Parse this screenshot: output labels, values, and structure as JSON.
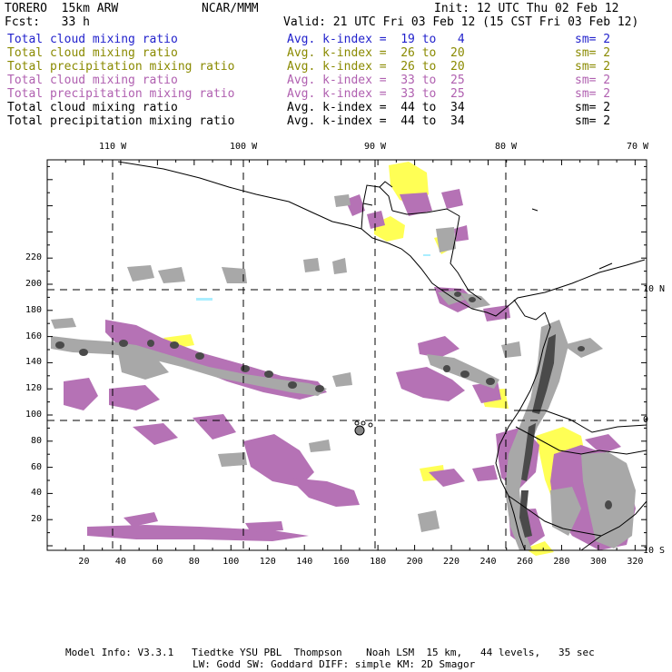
{
  "header": {
    "model": "TORERO  15km ARW",
    "center": "NCAR/MMM",
    "init": "Init: 12 UTC Thu 02 Feb 12",
    "fcst": "Fcst:   33 h",
    "valid": "Valid: 21 UTC Fri 03 Feb 12 (15 CST Fri 03 Feb 12)"
  },
  "legend": [
    {
      "field": "Total cloud mixing ratio",
      "kindex": "Avg. k-index =  19 to   4",
      "sm": "sm= 2",
      "color": "#2222cc"
    },
    {
      "field": "Total cloud mixing ratio",
      "kindex": "Avg. k-index =  26 to  20",
      "sm": "sm= 2",
      "color": "#8a8a00"
    },
    {
      "field": "Total precipitation mixing ratio",
      "kindex": "Avg. k-index =  26 to  20",
      "sm": "sm= 2",
      "color": "#8a8a00"
    },
    {
      "field": "Total cloud mixing ratio",
      "kindex": "Avg. k-index =  33 to  25",
      "sm": "sm= 2",
      "color": "#b060b0"
    },
    {
      "field": "Total precipitation mixing ratio",
      "kindex": "Avg. k-index =  33 to  25",
      "sm": "sm= 2",
      "color": "#b060b0"
    },
    {
      "field": "Total cloud mixing ratio",
      "kindex": "Avg. k-index =  44 to  34",
      "sm": "sm= 2",
      "color": "#000000"
    },
    {
      "field": "Total precipitation mixing ratio",
      "kindex": "Avg. k-index =  44 to  34",
      "sm": "sm= 2",
      "color": "#000000"
    }
  ],
  "axes": {
    "lon_labels": [
      "110 W",
      "100 W",
      "90 W",
      "80 W",
      "70 W"
    ],
    "lat_labels": [
      "10 N",
      "0",
      "10 S"
    ],
    "y_ticks": [
      "220",
      "200",
      "180",
      "160",
      "140",
      "120",
      "100",
      "80",
      "60",
      "40",
      "20"
    ],
    "x_ticks": [
      "20",
      "40",
      "60",
      "80",
      "100",
      "120",
      "140",
      "160",
      "180",
      "200",
      "220",
      "240",
      "260",
      "280",
      "300",
      "320"
    ]
  },
  "colors": {
    "gray": "#a8a8a8",
    "dark": "#4a4a4a",
    "magenta": "#b572b5",
    "yellow": "#ffff55",
    "land": "#000000"
  },
  "footer": {
    "line1": "Model Info: V3.3.1   Tiedtke YSU PBL  Thompson    Noah LSM  15 km,   44 levels,   35 sec",
    "line2": "LW: Godd SW: Goddard DIFF: simple KM: 2D Smagor"
  }
}
